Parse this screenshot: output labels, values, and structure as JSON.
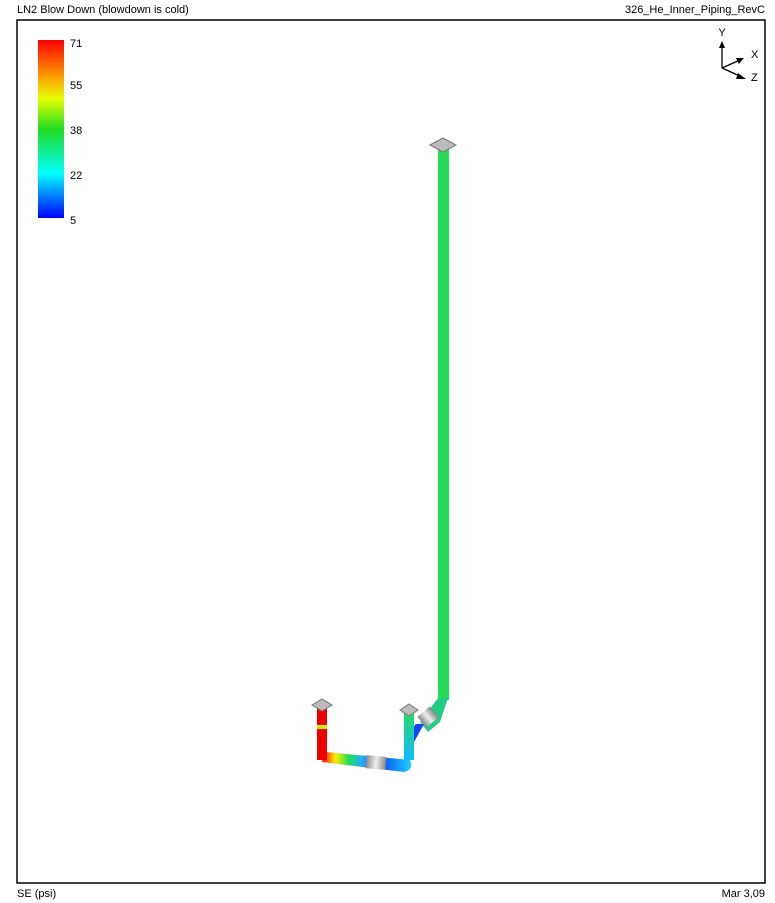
{
  "header": {
    "title": "LN2 Blow Down (blowdown is cold)",
    "model": "326_He_Inner_Piping_RevC"
  },
  "legend": {
    "labels": [
      71,
      55,
      38,
      22,
      5
    ]
  },
  "triad": {
    "y": "Y",
    "x": "X",
    "z": "Z"
  },
  "footer": {
    "units": "SE (psi)",
    "date": "Mar 3,09"
  }
}
